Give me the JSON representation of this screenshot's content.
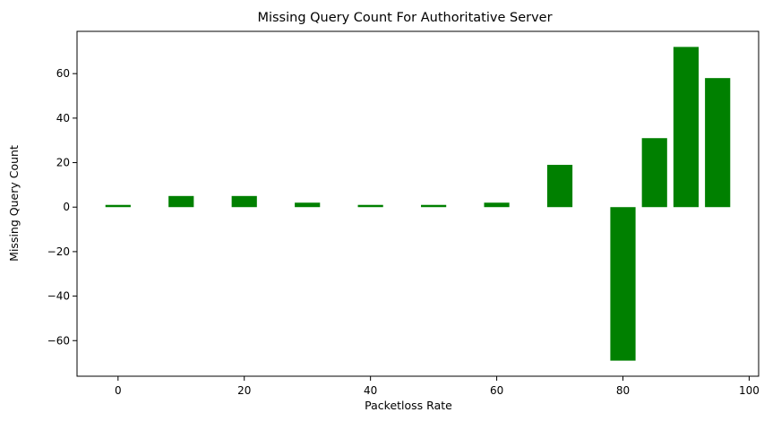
{
  "chart_data": {
    "type": "bar",
    "title": "Missing Query Count For Authoritative Server",
    "xlabel": "Packetloss Rate",
    "ylabel": "Missing Query Count",
    "x": [
      0,
      10,
      20,
      30,
      40,
      50,
      60,
      70,
      80,
      85,
      90,
      95
    ],
    "values": [
      1,
      5,
      5,
      2,
      1,
      1,
      2,
      19,
      -69,
      31,
      72,
      58
    ],
    "bar_width": 4,
    "xlim": [
      -6.5,
      101.5
    ],
    "ylim": [
      -76,
      79
    ],
    "xticks": [
      0,
      20,
      40,
      60,
      80,
      100
    ],
    "yticks": [
      -60,
      -40,
      -20,
      0,
      20,
      40,
      60
    ],
    "xtick_labels": [
      "0",
      "20",
      "40",
      "60",
      "80",
      "100"
    ],
    "ytick_labels": [
      "−60",
      "−40",
      "−20",
      "0",
      "20",
      "40",
      "60"
    ],
    "bar_color": "#008000",
    "grid": false,
    "legend": "none"
  }
}
